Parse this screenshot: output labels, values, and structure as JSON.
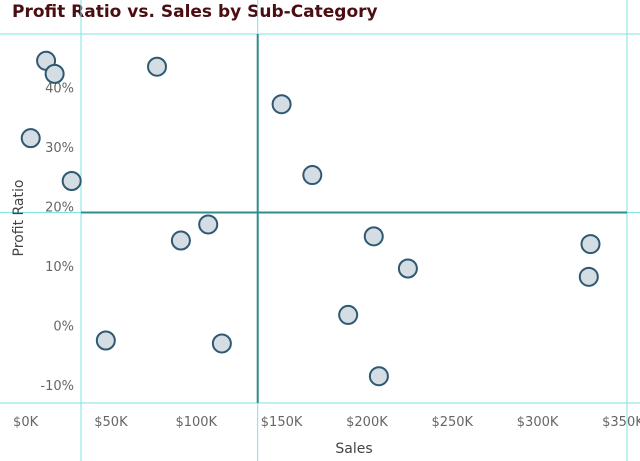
{
  "chart_data": {
    "type": "scatter",
    "title": "Profit Ratio vs. Sales by Sub-Category",
    "xlabel": "Sales",
    "ylabel": "Profit Ratio",
    "xlim": [
      -15000,
      360000
    ],
    "ylim": [
      -0.13,
      0.49
    ],
    "x_ticks": [
      {
        "value": 0,
        "label": "$0K"
      },
      {
        "value": 50000,
        "label": "$50K"
      },
      {
        "value": 100000,
        "label": "$100K"
      },
      {
        "value": 150000,
        "label": "$150K"
      },
      {
        "value": 200000,
        "label": "$200K"
      },
      {
        "value": 250000,
        "label": "$250K"
      },
      {
        "value": 300000,
        "label": "$300K"
      },
      {
        "value": 350000,
        "label": "$350K"
      }
    ],
    "y_ticks": [
      {
        "value": -0.1,
        "label": "-10%"
      },
      {
        "value": 0,
        "label": "0%"
      },
      {
        "value": 0.1,
        "label": "10%"
      },
      {
        "value": 0.2,
        "label": "20%"
      },
      {
        "value": 0.3,
        "label": "30%"
      },
      {
        "value": 0.4,
        "label": "40%"
      }
    ],
    "reference_lines": {
      "x": 136000,
      "y": 0.19
    },
    "grid": true,
    "colors": {
      "point_fill": "#d4dde3",
      "point_stroke": "#2f5872",
      "gridline": "#7fe3e3",
      "reference_line": "#2e8c8c",
      "title": "#4a0d12"
    },
    "points": [
      {
        "x": 3000,
        "y": 0.315
      },
      {
        "x": 12000,
        "y": 0.445
      },
      {
        "x": 17000,
        "y": 0.423
      },
      {
        "x": 27000,
        "y": 0.243
      },
      {
        "x": 47000,
        "y": -0.025
      },
      {
        "x": 77000,
        "y": 0.435
      },
      {
        "x": 91000,
        "y": 0.143
      },
      {
        "x": 107000,
        "y": 0.17
      },
      {
        "x": 115000,
        "y": -0.03
      },
      {
        "x": 150000,
        "y": 0.372
      },
      {
        "x": 168000,
        "y": 0.253
      },
      {
        "x": 189000,
        "y": 0.018
      },
      {
        "x": 204000,
        "y": 0.15
      },
      {
        "x": 207000,
        "y": -0.085
      },
      {
        "x": 224000,
        "y": 0.096
      },
      {
        "x": 330000,
        "y": 0.082
      },
      {
        "x": 331000,
        "y": 0.137
      }
    ]
  }
}
